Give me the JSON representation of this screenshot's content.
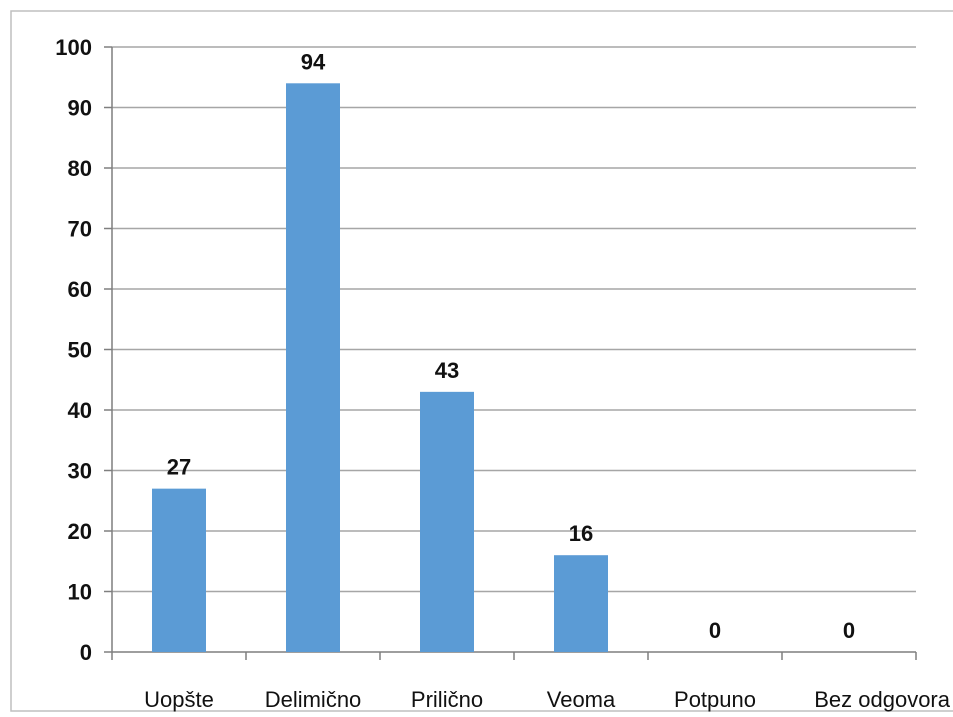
{
  "chart_data": {
    "type": "bar",
    "categories": [
      "Uopšte",
      "Delimično",
      "Prilično",
      "Veoma",
      "Potpuno",
      "Bez odgovora"
    ],
    "values": [
      27,
      94,
      43,
      16,
      0,
      0
    ],
    "data_labels": [
      "27",
      "94",
      "43",
      "16",
      "0",
      "0"
    ],
    "title": "",
    "xlabel": "",
    "ylabel": "",
    "ylim": [
      0,
      100
    ],
    "yticks": [
      0,
      10,
      20,
      30,
      40,
      50,
      60,
      70,
      80,
      90,
      100
    ],
    "ytick_labels": [
      "0",
      "10",
      "20",
      "30",
      "40",
      "50",
      "60",
      "70",
      "80",
      "90",
      "100"
    ],
    "grid": true,
    "legend": "none",
    "bar_color": "#5b9bd5",
    "grid_color": "#a6a6a6",
    "frame_color": "#bfbfbf"
  }
}
